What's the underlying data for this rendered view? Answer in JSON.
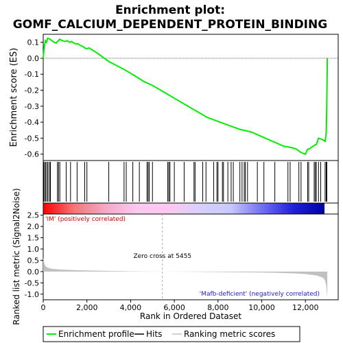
{
  "chart_data": {
    "type": "line",
    "title_line1": "Enrichment plot:",
    "title_line2": "GOMF_CALCIUM_DEPENDENT_PROTEIN_BINDING",
    "top_panel": {
      "ylabel": "Enrichment score (ES)",
      "ylim": [
        -0.64,
        0.15
      ],
      "yticks": [
        0.1,
        0.0,
        -0.1,
        -0.2,
        -0.3,
        -0.4,
        -0.5,
        -0.6
      ],
      "yticklabels": [
        "0.1",
        "0.0",
        "-0.1",
        "-0.2",
        "-0.3",
        "-0.4",
        "-0.5",
        "-0.6"
      ],
      "series_name": "Enrichment profile",
      "color": "#00ee00",
      "x": [
        0,
        30,
        60,
        100,
        150,
        200,
        300,
        400,
        500,
        600,
        650,
        700,
        750,
        800,
        900,
        1000,
        1100,
        1200,
        1300,
        1400,
        1500,
        1600,
        1700,
        1800,
        1900,
        2000,
        2100,
        2500,
        3000,
        3700,
        4200,
        4600,
        5000,
        5500,
        6000,
        6500,
        7000,
        7500,
        8000,
        8500,
        9000,
        9500,
        10000,
        10500,
        11000,
        11400,
        11600,
        11800,
        12000,
        12100,
        12200,
        12300,
        12400,
        12500,
        12600,
        12700,
        12800,
        12900,
        12950,
        12970,
        12990,
        13000
      ],
      "y": [
        0.0,
        0.05,
        0.08,
        0.11,
        0.1,
        0.125,
        0.12,
        0.11,
        0.1,
        0.095,
        0.105,
        0.11,
        0.12,
        0.115,
        0.11,
        0.105,
        0.11,
        0.1,
        0.105,
        0.095,
        0.09,
        0.09,
        0.08,
        0.075,
        0.065,
        0.06,
        0.065,
        0.03,
        -0.02,
        -0.07,
        -0.11,
        -0.145,
        -0.17,
        -0.21,
        -0.25,
        -0.29,
        -0.33,
        -0.37,
        -0.395,
        -0.42,
        -0.445,
        -0.46,
        -0.49,
        -0.52,
        -0.55,
        -0.56,
        -0.57,
        -0.59,
        -0.6,
        -0.57,
        -0.565,
        -0.555,
        -0.545,
        -0.54,
        -0.5,
        -0.505,
        -0.51,
        -0.52,
        -0.47,
        -0.37,
        -0.14,
        0.0
      ]
    },
    "hits": [
      20,
      60,
      110,
      170,
      220,
      290,
      330,
      650,
      700,
      760,
      1050,
      1250,
      1550,
      1900,
      2000,
      3000,
      3700,
      3800,
      4100,
      4400,
      4750,
      4800,
      4850,
      5000,
      5700,
      5750,
      5800,
      6000,
      6450,
      6900,
      6950,
      7300,
      7450,
      7800,
      7950,
      8000,
      8200,
      8250,
      8450,
      8600,
      8700,
      9000,
      9100,
      9200,
      9250,
      9350,
      9800,
      10100,
      10600,
      11200,
      11300,
      11700,
      11800,
      12100,
      12150,
      12400,
      12450,
      12500,
      12600,
      12700,
      12900,
      12950,
      12980
    ],
    "ranked_list": {
      "ylabel": "Ranked list metric (Signal2Noise)",
      "ylim": [
        -1.25,
        2.55
      ],
      "yticks": [
        2.5,
        2.0,
        1.5,
        1.0,
        0.5,
        0.0,
        -0.5,
        -1.0
      ],
      "yticklabels": [
        "2.5",
        "2.0",
        "1.5",
        "1.0",
        "0.5",
        "0.0",
        "-0.5",
        "-1.0"
      ],
      "x": [
        0,
        50,
        100,
        200,
        400,
        800,
        1500,
        3000,
        4500,
        5455,
        7000,
        9000,
        10500,
        11500,
        12000,
        12500,
        12800,
        12900,
        12950,
        13000
      ],
      "y": [
        0.62,
        0.35,
        0.25,
        0.17,
        0.12,
        0.09,
        0.06,
        0.03,
        0.01,
        0.0,
        -0.01,
        -0.03,
        -0.05,
        -0.08,
        -0.11,
        -0.17,
        -0.27,
        -0.4,
        -0.6,
        -1.15
      ],
      "fill_color": "#c0c0c0",
      "label_pos": "'IM' (positively correlated)",
      "label_neg": "'Mafb-deficient' (negatively correlated)",
      "zero_cross_label": "Zero cross at 5455",
      "zero_cross_x": 5455
    },
    "xlabel": "Rank in Dataset",
    "xlabel_prefix": "Rank in Ordered Dataset",
    "xlim": [
      0,
      13500
    ],
    "xticks": [
      0,
      2000,
      4000,
      6000,
      8000,
      10000,
      12000
    ],
    "xticklabels": [
      "0",
      "2,000",
      "4,000",
      "6,000",
      "8,000",
      "10,000",
      "12,000"
    ],
    "n_genes": 13000,
    "colorbar_stops": [
      "#ff0000",
      "#f27878",
      "#f4a8c8",
      "#ffc8f0",
      "#ffc8f0",
      "#d8d0ff",
      "#c8c8ff",
      "#7070f0",
      "#2020d8",
      "#0000a0"
    ],
    "legend": {
      "items": [
        "Enrichment profile",
        "Hits",
        "Ranking metric scores"
      ],
      "colors": [
        "#00ee00",
        "#000000",
        "#c0c0c0"
      ]
    }
  }
}
